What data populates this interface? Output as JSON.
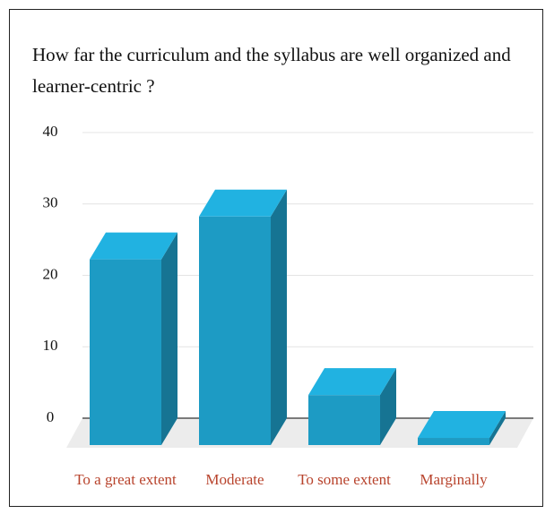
{
  "chart_data": {
    "type": "bar3d",
    "title": "How far the curriculum and the syllabus are well organized and learner-centric ?",
    "categories": [
      "To a great extent",
      "Moderate",
      "To some extent",
      "Marginally"
    ],
    "values": [
      26,
      32,
      7,
      1
    ],
    "color": "#1d9bc4",
    "ylim": [
      0,
      40
    ],
    "yticks": [
      0,
      10,
      20,
      30,
      40
    ],
    "grid": true
  }
}
